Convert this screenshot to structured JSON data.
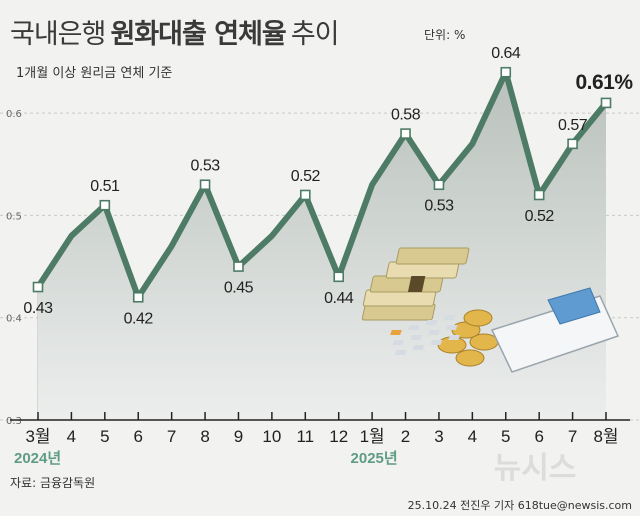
{
  "title": {
    "part1": "국내은행",
    "part2": "원화대출 연체율",
    "part3": "추이"
  },
  "unit_label": "단위: %",
  "subtitle": "1개월 이상 원리금 연체 기준",
  "source": "자료: 금융감독원",
  "credit": "25.10.24 전진우 기자 618tue@newsis.com",
  "watermark": "뉴시스",
  "colors": {
    "line": "#4d7b65",
    "area_top": "#b9c1bc",
    "area_bottom": "#eceeed",
    "year": "#5f9c85"
  },
  "chart_data": {
    "type": "line",
    "title": "국내은행 원화대출 연체율 추이",
    "ylabel": "",
    "xlabel": "",
    "ylim": [
      0.3,
      0.65
    ],
    "yticks": [
      0.3,
      0.4,
      0.5,
      0.6
    ],
    "ytick_labels": [
      "0.3",
      "0.4",
      "0.5",
      "0.6"
    ],
    "grid": true,
    "categories": [
      "3월",
      "4",
      "5",
      "6",
      "7",
      "8",
      "9",
      "10",
      "11",
      "12",
      "1월",
      "2",
      "3",
      "4",
      "5",
      "6",
      "7",
      "8월"
    ],
    "year_labels": [
      {
        "label": "2024년",
        "at_index": 0
      },
      {
        "label": "2025년",
        "at_index": 10
      }
    ],
    "values": [
      0.43,
      0.48,
      0.51,
      0.42,
      0.47,
      0.53,
      0.45,
      0.48,
      0.52,
      0.44,
      0.53,
      0.58,
      0.53,
      0.57,
      0.64,
      0.52,
      0.57,
      0.61
    ],
    "data_labels": [
      {
        "index": 0,
        "text": "0.43",
        "pos": "below"
      },
      {
        "index": 2,
        "text": "0.51",
        "pos": "above"
      },
      {
        "index": 3,
        "text": "0.42",
        "pos": "below"
      },
      {
        "index": 5,
        "text": "0.53",
        "pos": "above"
      },
      {
        "index": 6,
        "text": "0.45",
        "pos": "below"
      },
      {
        "index": 8,
        "text": "0.52",
        "pos": "above"
      },
      {
        "index": 9,
        "text": "0.44",
        "pos": "below"
      },
      {
        "index": 11,
        "text": "0.58",
        "pos": "above"
      },
      {
        "index": 12,
        "text": "0.53",
        "pos": "below"
      },
      {
        "index": 14,
        "text": "0.64",
        "pos": "above"
      },
      {
        "index": 15,
        "text": "0.52",
        "pos": "below"
      },
      {
        "index": 16,
        "text": "0.57",
        "pos": "above"
      },
      {
        "index": 17,
        "text": "0.61%",
        "pos": "above",
        "emphasis": true
      }
    ],
    "marked_points": [
      0,
      2,
      3,
      5,
      6,
      8,
      9,
      11,
      12,
      14,
      15,
      16,
      17
    ]
  }
}
